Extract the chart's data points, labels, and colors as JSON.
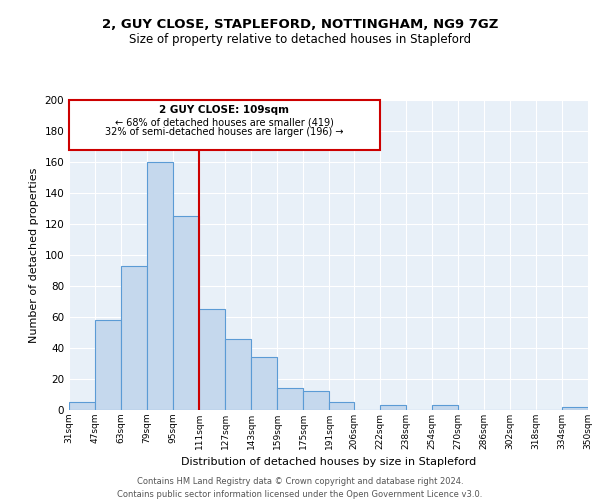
{
  "title": "2, GUY CLOSE, STAPLEFORD, NOTTINGHAM, NG9 7GZ",
  "subtitle": "Size of property relative to detached houses in Stapleford",
  "xlabel": "Distribution of detached houses by size in Stapleford",
  "ylabel": "Number of detached properties",
  "bar_color": "#c5d8ed",
  "bar_edge_color": "#5b9bd5",
  "background_color": "#e8f0f8",
  "bin_edges": [
    31,
    47,
    63,
    79,
    95,
    111,
    127,
    143,
    159,
    175,
    191,
    206,
    222,
    238,
    254,
    270,
    286,
    302,
    318,
    334,
    350
  ],
  "bin_labels": [
    "31sqm",
    "47sqm",
    "63sqm",
    "79sqm",
    "95sqm",
    "111sqm",
    "127sqm",
    "143sqm",
    "159sqm",
    "175sqm",
    "191sqm",
    "206sqm",
    "222sqm",
    "238sqm",
    "254sqm",
    "270sqm",
    "286sqm",
    "302sqm",
    "318sqm",
    "334sqm",
    "350sqm"
  ],
  "counts": [
    5,
    58,
    93,
    160,
    125,
    65,
    46,
    34,
    14,
    12,
    5,
    0,
    3,
    0,
    3,
    0,
    0,
    0,
    0,
    2
  ],
  "vline_bin_index": 5,
  "vline_color": "#cc0000",
  "annotation_text_line1": "2 GUY CLOSE: 109sqm",
  "annotation_text_line2": "← 68% of detached houses are smaller (419)",
  "annotation_text_line3": "32% of semi-detached houses are larger (196) →",
  "annotation_box_edge_color": "#cc0000",
  "ylim": [
    0,
    200
  ],
  "yticks": [
    0,
    20,
    40,
    60,
    80,
    100,
    120,
    140,
    160,
    180,
    200
  ],
  "footer_line1": "Contains HM Land Registry data © Crown copyright and database right 2024.",
  "footer_line2": "Contains public sector information licensed under the Open Government Licence v3.0."
}
